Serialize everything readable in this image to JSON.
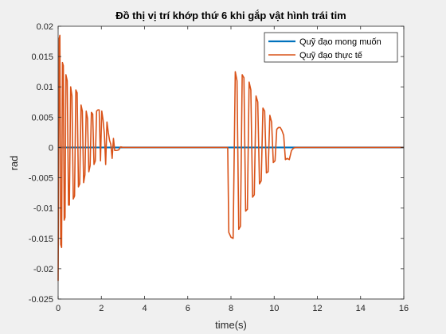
{
  "chart_data": {
    "type": "line",
    "title": "Đồ thị vị trí khớp thứ 6 khi gắp vật hình trái tim",
    "xlabel": "time(s)",
    "ylabel": "rad",
    "xlim": [
      0,
      16
    ],
    "ylim": [
      -0.025,
      0.02
    ],
    "xticks": [
      0,
      2,
      4,
      6,
      8,
      10,
      12,
      14,
      16
    ],
    "xtick_labels": [
      "0",
      "2",
      "4",
      "6",
      "8",
      "10",
      "12",
      "14",
      "16"
    ],
    "yticks": [
      -0.025,
      -0.02,
      -0.015,
      -0.01,
      -0.005,
      0,
      0.005,
      0.01,
      0.015,
      0.02
    ],
    "ytick_labels": [
      "-0.025",
      "-0.02",
      "-0.015",
      "-0.01",
      "-0.005",
      "0",
      "0.005",
      "0.01",
      "0.015",
      "0.02"
    ],
    "grid": false,
    "legend_position": "top-right",
    "series": [
      {
        "name": "Quỹ đạo mong muốn",
        "color": "#0072BD",
        "x": [
          0,
          16
        ],
        "y": [
          0,
          0
        ]
      },
      {
        "name": "Quỹ đạo thực tế",
        "color": "#D95319",
        "x": [
          0,
          0.05,
          0.08,
          0.12,
          0.16,
          0.2,
          0.24,
          0.28,
          0.32,
          0.36,
          0.42,
          0.48,
          0.52,
          0.58,
          0.64,
          0.7,
          0.76,
          0.82,
          0.88,
          0.94,
          1.0,
          1.06,
          1.12,
          1.18,
          1.24,
          1.3,
          1.36,
          1.42,
          1.48,
          1.54,
          1.6,
          1.66,
          1.72,
          1.78,
          1.84,
          1.9,
          1.96,
          2.02,
          2.08,
          2.14,
          2.2,
          2.26,
          2.32,
          2.38,
          2.44,
          2.5,
          2.56,
          2.62,
          2.7,
          2.8,
          2.9,
          3.0,
          3.5,
          7.85,
          7.9,
          8.0,
          8.1,
          8.2,
          8.28,
          8.36,
          8.44,
          8.52,
          8.6,
          8.68,
          8.76,
          8.84,
          8.92,
          9.0,
          9.08,
          9.16,
          9.24,
          9.32,
          9.4,
          9.48,
          9.56,
          9.64,
          9.72,
          9.8,
          9.88,
          9.96,
          10.04,
          10.12,
          10.2,
          10.28,
          10.36,
          10.44,
          10.52,
          10.6,
          10.7,
          10.8,
          10.9,
          11.0,
          12,
          14,
          16
        ],
        "y": [
          -0.022,
          0.018,
          0.0185,
          -0.016,
          -0.0165,
          0.014,
          0.0135,
          -0.012,
          -0.0115,
          0.012,
          0.011,
          -0.0095,
          -0.0095,
          0.01,
          0.0085,
          -0.0085,
          -0.008,
          0.0095,
          0.009,
          -0.0065,
          -0.006,
          0.007,
          0.006,
          -0.0058,
          -0.0045,
          0.006,
          0.0048,
          -0.004,
          -0.003,
          0.0058,
          0.0055,
          -0.0028,
          -0.0022,
          0.006,
          0.0062,
          0.0062,
          -0.0022,
          0.006,
          0.0045,
          0.0022,
          -0.0028,
          0.0042,
          0.0025,
          0.0012,
          0.0005,
          -0.0018,
          0.0015,
          -0.0005,
          -0.0005,
          -0.0004,
          0.0001,
          0.0,
          0.0,
          0.0,
          -0.014,
          -0.0148,
          -0.015,
          0.0125,
          0.011,
          -0.0135,
          -0.013,
          0.012,
          0.0115,
          -0.0105,
          -0.0102,
          0.0108,
          0.0095,
          -0.0082,
          -0.0078,
          0.0085,
          0.0075,
          -0.006,
          -0.0055,
          0.0065,
          0.006,
          -0.0042,
          -0.004,
          0.0053,
          0.0042,
          -0.0025,
          -0.0022,
          0.003,
          0.0033,
          0.0033,
          0.0028,
          0.002,
          -0.002,
          -0.0018,
          -0.002,
          -0.0005,
          -0.0001,
          0.0,
          0.0,
          0.0,
          0.0
        ]
      }
    ]
  }
}
